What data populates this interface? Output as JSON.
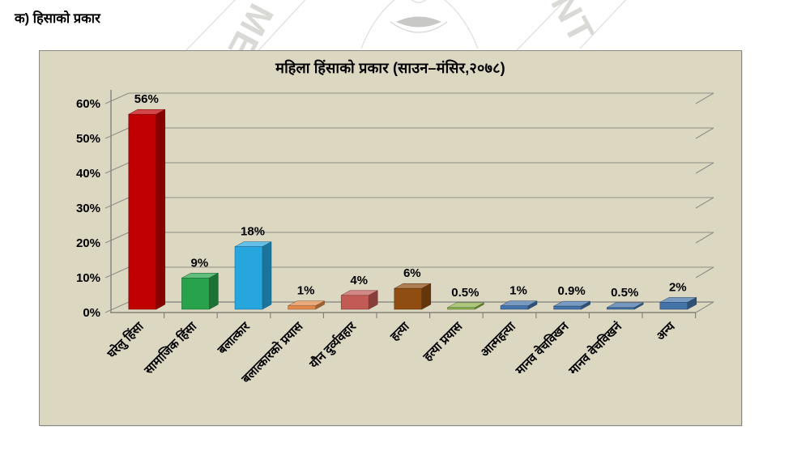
{
  "page": {
    "header": "क) हिसाको प्रकार"
  },
  "watermark": {
    "left_letters": "ME",
    "right_letters": "NT"
  },
  "chart_data": {
    "type": "bar",
    "effect": "3d",
    "title": "महिला हिंसाको प्रकार  (साउन–मंसिर,२०७८)",
    "categories": [
      "घरेलु हिंसा",
      "सामाजिक हिंसा",
      "बलात्कार",
      "बलात्कारको प्रयास",
      "यौन दुर्व्यवहार",
      "हत्या",
      "हत्या प्रयास",
      "आत्महत्या",
      "मानव वेचविखन",
      "मानव वेचविखनं",
      "अन्य"
    ],
    "values": [
      56,
      9,
      18,
      1,
      4,
      6,
      0.5,
      1,
      0.9,
      0.5,
      2
    ],
    "value_labels": [
      "56%",
      "9%",
      "18%",
      "1%",
      "4%",
      "6%",
      "0.5%",
      "1%",
      "0.9%",
      "0.5%",
      "2%"
    ],
    "bar_colors": [
      "#c00000",
      "#28a24b",
      "#27a6de",
      "#e2884a",
      "#c25a55",
      "#8f4d11",
      "#8db14c",
      "#4473a9",
      "#4473a9",
      "#4473a9",
      "#4473a9"
    ],
    "y_ticks": [
      "0%",
      "10%",
      "20%",
      "30%",
      "40%",
      "50%",
      "60%"
    ],
    "ylim": [
      0,
      60
    ],
    "xlabel": "",
    "ylabel": "",
    "grid": true,
    "legend": "none",
    "background_color": "#dbd7c1",
    "gridline_color": "#8f8f88",
    "label_color": "#000000"
  }
}
